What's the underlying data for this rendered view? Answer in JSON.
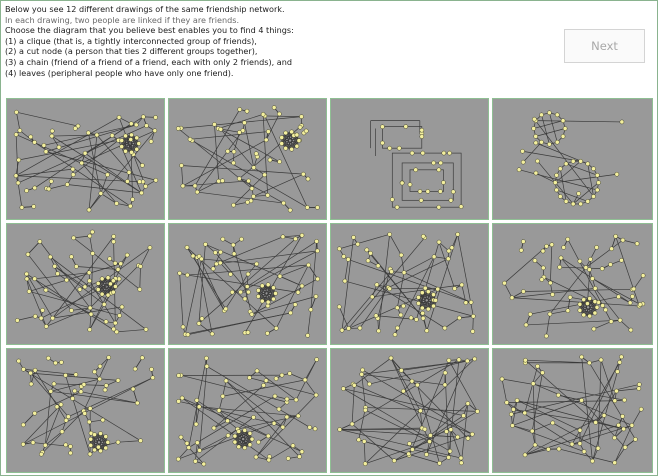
{
  "instructions": {
    "lines": [
      "Below you see 12 different drawings of the same friendship network.",
      "In each drawing, two people are linked if they are friends.",
      "Choose the diagram that you believe best enables you to find 4 things:",
      "(1) a clique (that is, a tightly interconnected group of friends),",
      "(2) a cut node (a person that ties 2 different groups together),",
      "(3) a chain (friend of a friend of a friend, each with only 2 friends), and",
      "(4) leaves (peripheral people who have only one friend)."
    ]
  },
  "next_button": {
    "label": "Next"
  },
  "colors": {
    "panel_bg": "#999999",
    "panel_border": "#8fbf93",
    "node_fill": "#f3ef9e",
    "node_stroke": "#3b3b2a",
    "edge": "#3a3a3a",
    "next_text": "#a8a8a8"
  },
  "panels": [
    {
      "id": 1,
      "layout": "force-directed"
    },
    {
      "id": 2,
      "layout": "force-directed"
    },
    {
      "id": 3,
      "layout": "orthogonal"
    },
    {
      "id": 4,
      "layout": "circular-clusters"
    },
    {
      "id": 5,
      "layout": "force-directed"
    },
    {
      "id": 6,
      "layout": "force-directed"
    },
    {
      "id": 7,
      "layout": "force-directed"
    },
    {
      "id": 8,
      "layout": "force-directed"
    },
    {
      "id": 9,
      "layout": "force-directed"
    },
    {
      "id": 10,
      "layout": "force-directed"
    },
    {
      "id": 11,
      "layout": "random"
    },
    {
      "id": 12,
      "layout": "random"
    }
  ]
}
